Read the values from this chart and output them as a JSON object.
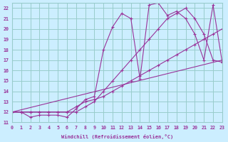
{
  "xlabel": "Windchill (Refroidissement éolien,°C)",
  "background_color": "#cceeff",
  "grid_color": "#99cccc",
  "line_color": "#993399",
  "xlim": [
    0,
    23
  ],
  "ylim": [
    11,
    22.5
  ],
  "xticks": [
    0,
    1,
    2,
    3,
    4,
    5,
    6,
    7,
    8,
    9,
    10,
    11,
    12,
    13,
    14,
    15,
    16,
    17,
    18,
    19,
    20,
    21,
    22,
    23
  ],
  "yticks": [
    11,
    12,
    13,
    14,
    15,
    16,
    17,
    18,
    19,
    20,
    21,
    22
  ],
  "series1_x": [
    0,
    23
  ],
  "series1_y": [
    12,
    17
  ],
  "series2_x": [
    0,
    1,
    2,
    3,
    4,
    5,
    6,
    7,
    8,
    9,
    10,
    11,
    12,
    13,
    14,
    15,
    16,
    17,
    18,
    19,
    20,
    21,
    22,
    23
  ],
  "series2_y": [
    12,
    12,
    12,
    12,
    12,
    12,
    12,
    12.5,
    13,
    13.2,
    13.5,
    14,
    14.5,
    15,
    15.5,
    16,
    16.5,
    17,
    17.5,
    18,
    18.5,
    19,
    19.5,
    20
  ],
  "series3_x": [
    0,
    1,
    2,
    3,
    4,
    5,
    6,
    7,
    8,
    9,
    10,
    11,
    12,
    13,
    14,
    15,
    16,
    17,
    18,
    19,
    20,
    21,
    22,
    23
  ],
  "series3_y": [
    12,
    12,
    11.5,
    11.7,
    11.7,
    11.7,
    11.5,
    12.3,
    13.2,
    13.5,
    18,
    20.2,
    21.5,
    21.0,
    15.2,
    22.3,
    22.5,
    21.3,
    21.7,
    21.0,
    19.5,
    17.0,
    22.3,
    16.8
  ],
  "series4_x": [
    0,
    1,
    2,
    3,
    4,
    5,
    6,
    7,
    8,
    9,
    10,
    11,
    12,
    13,
    14,
    15,
    16,
    17,
    18,
    19,
    20,
    21,
    22,
    23
  ],
  "series4_y": [
    12,
    12,
    12,
    12,
    12,
    12,
    12,
    12,
    12.5,
    13,
    14,
    15,
    16,
    17,
    18,
    19,
    20,
    21,
    21.5,
    22,
    21,
    19.5,
    17,
    16.8
  ]
}
